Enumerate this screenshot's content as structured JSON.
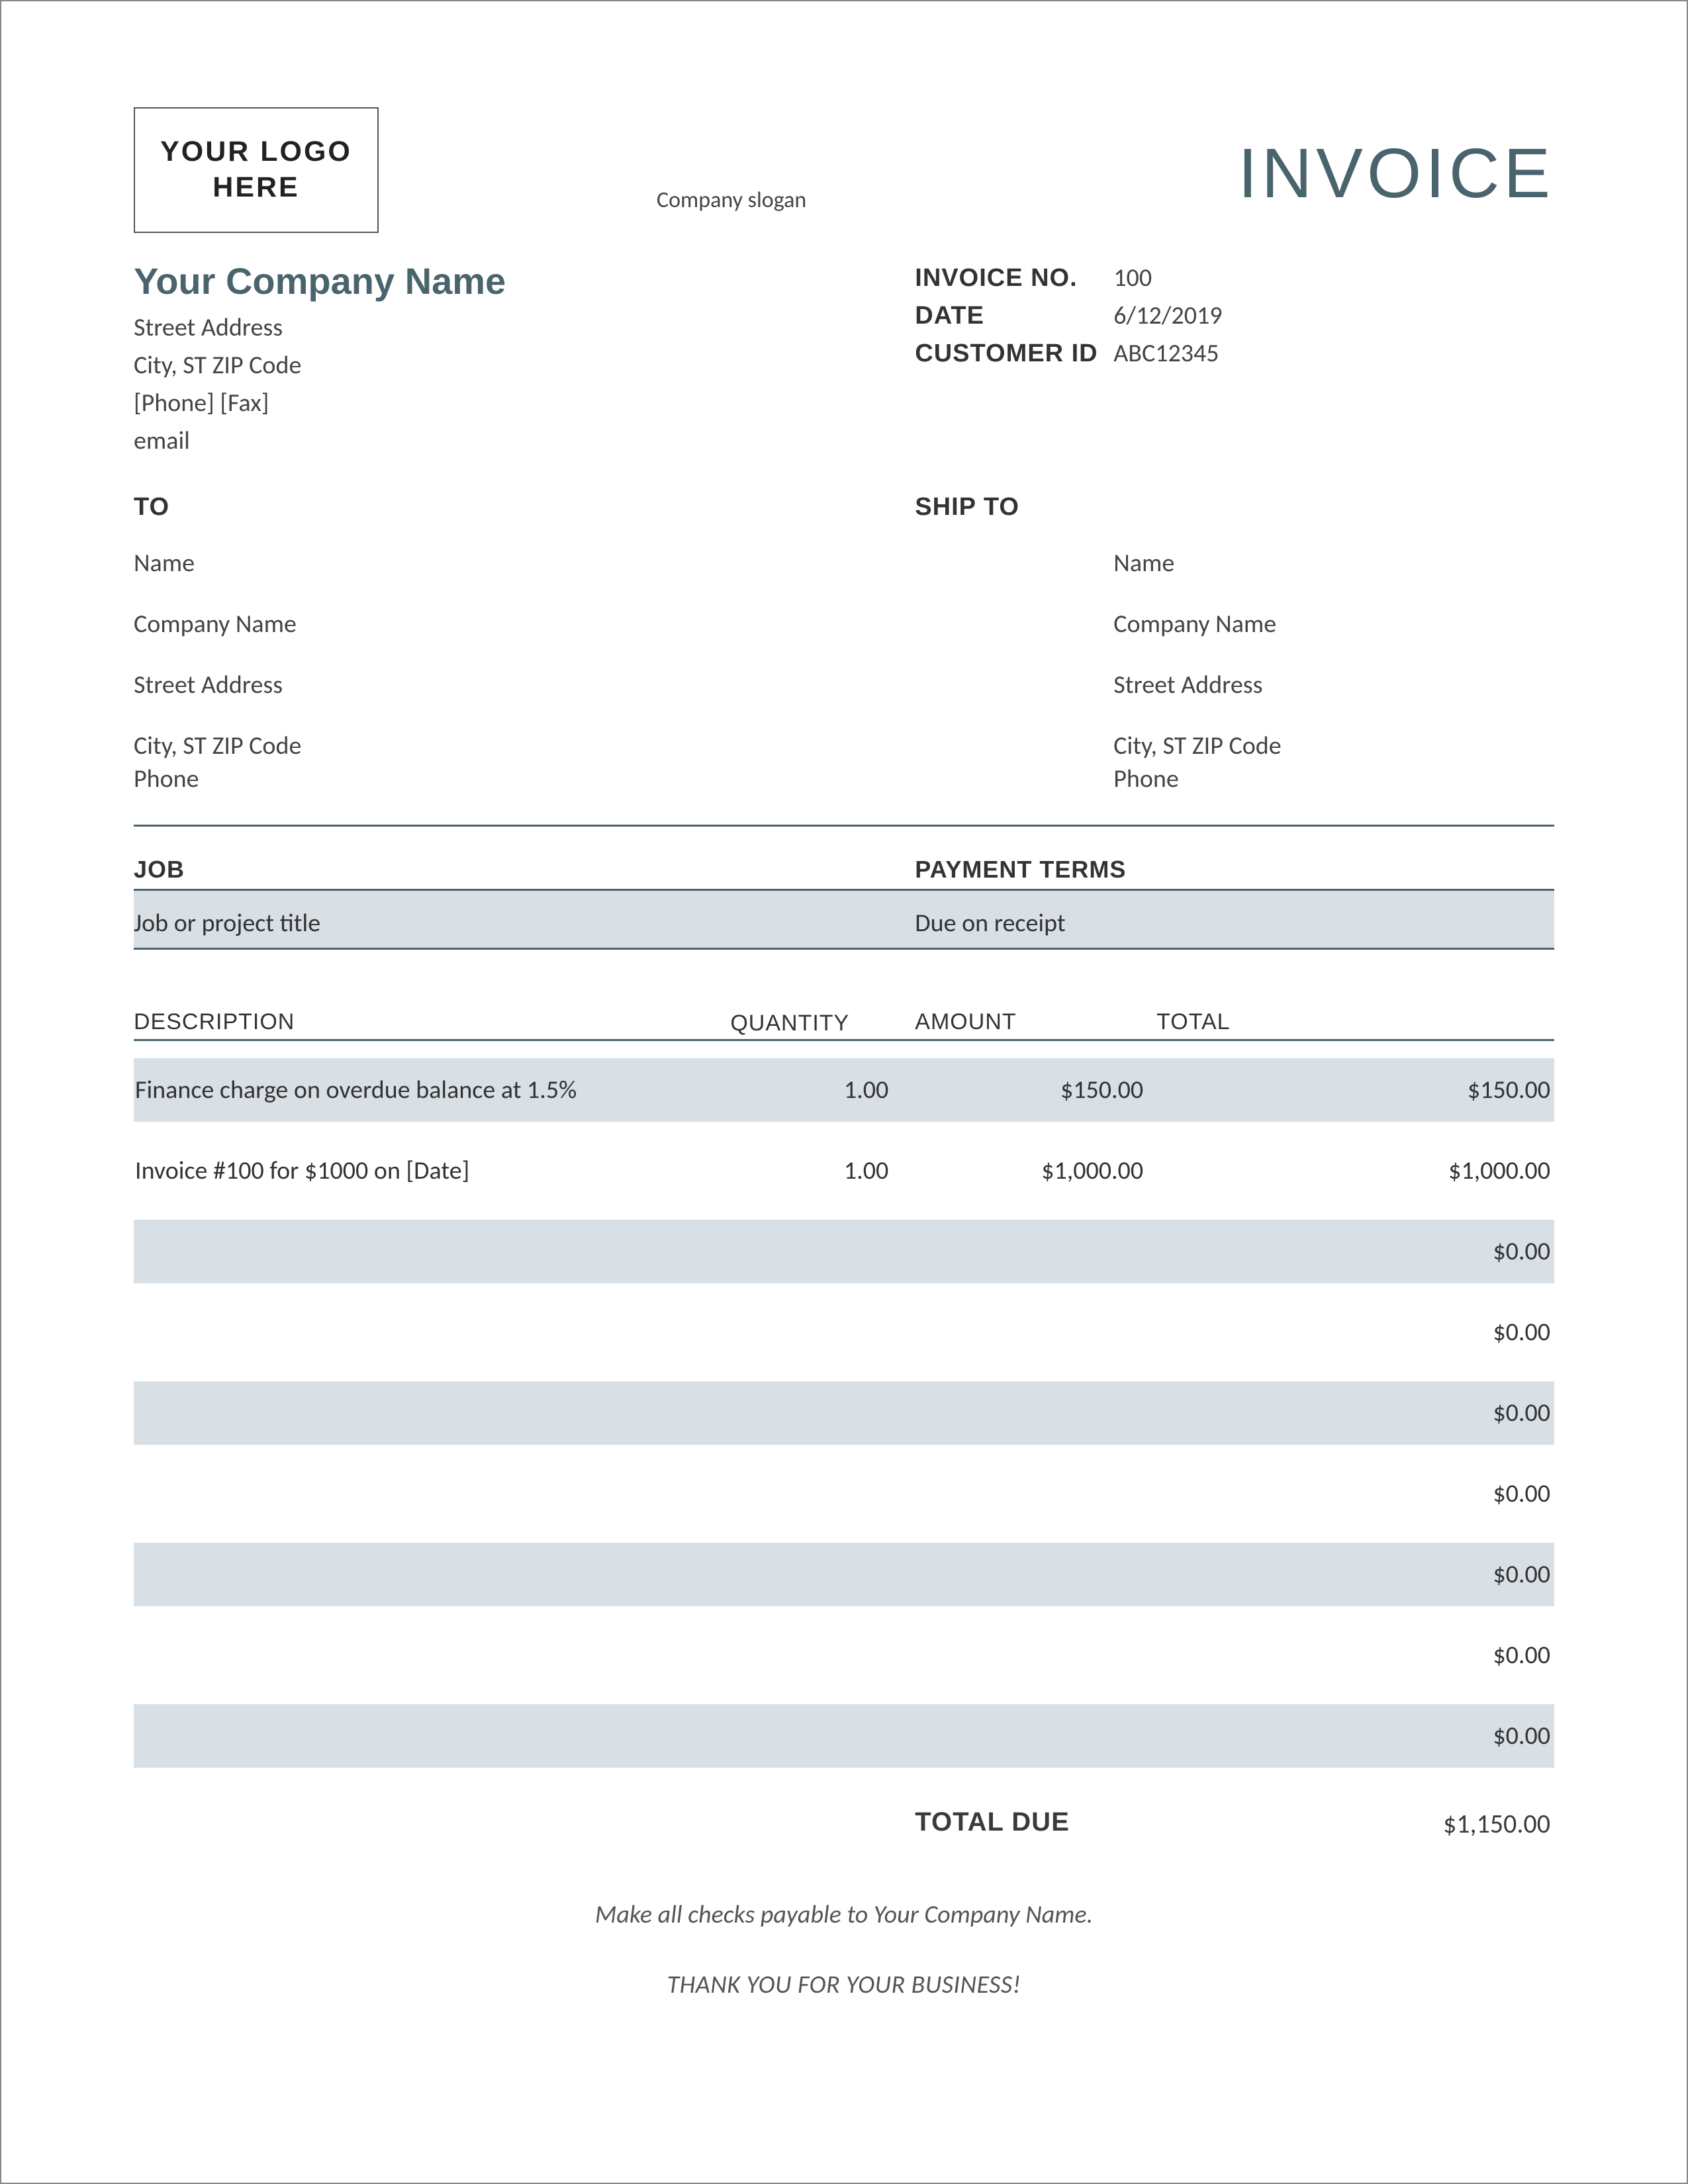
{
  "colors": {
    "accent": "#4a646d",
    "row_alt_bg": "#d8dfe5",
    "border": "#4a646d",
    "text": "#3a3a3a",
    "muted": "#555555"
  },
  "header": {
    "logo_line1": "YOUR LOGO",
    "logo_line2": "HERE",
    "slogan": "Company slogan",
    "title": "INVOICE"
  },
  "company": {
    "name": "Your Company Name",
    "street": "Street Address",
    "city_line": "City, ST  ZIP Code",
    "phone_fax": "[Phone]  [Fax]",
    "email": "email"
  },
  "meta": {
    "invoice_no_label": "INVOICE NO.",
    "invoice_no": "100",
    "date_label": "DATE",
    "date": "6/12/2019",
    "customer_id_label": "CUSTOMER ID",
    "customer_id": "ABC12345"
  },
  "bill_to": {
    "heading": "TO",
    "name": "Name",
    "company": "Company Name",
    "street": "Street Address",
    "city_line": "City, ST  ZIP Code",
    "phone": "Phone"
  },
  "ship_to": {
    "heading": "SHIP TO",
    "name": "Name",
    "company": "Company Name",
    "street": "Street Address",
    "city_line": "City, ST  ZIP Code",
    "phone": "Phone"
  },
  "job_terms": {
    "job_label": "JOB",
    "terms_label": "PAYMENT TERMS",
    "job_value": "Job or project title",
    "terms_value": "Due on receipt"
  },
  "items_header": {
    "description": "DESCRIPTION",
    "quantity": "QUANTITY",
    "amount": "AMOUNT",
    "total": "TOTAL"
  },
  "items": [
    {
      "desc": "Finance charge on overdue balance at 1.5%",
      "qty": "1.00",
      "amount": "$150.00",
      "total": "$150.00"
    },
    {
      "desc": "Invoice #100 for $1000 on [Date]",
      "qty": "1.00",
      "amount": "$1,000.00",
      "total": "$1,000.00"
    },
    {
      "desc": "",
      "qty": "",
      "amount": "",
      "total": "$0.00"
    },
    {
      "desc": "",
      "qty": "",
      "amount": "",
      "total": "$0.00"
    },
    {
      "desc": "",
      "qty": "",
      "amount": "",
      "total": "$0.00"
    },
    {
      "desc": "",
      "qty": "",
      "amount": "",
      "total": "$0.00"
    },
    {
      "desc": "",
      "qty": "",
      "amount": "",
      "total": "$0.00"
    },
    {
      "desc": "",
      "qty": "",
      "amount": "",
      "total": "$0.00"
    },
    {
      "desc": "",
      "qty": "",
      "amount": "",
      "total": "$0.00"
    }
  ],
  "total_due": {
    "label": "TOTAL DUE",
    "value": "$1,150.00"
  },
  "footer": {
    "checks_note": "Make all checks payable to Your Company Name.",
    "thank_you": "THANK YOU FOR YOUR BUSINESS!"
  }
}
